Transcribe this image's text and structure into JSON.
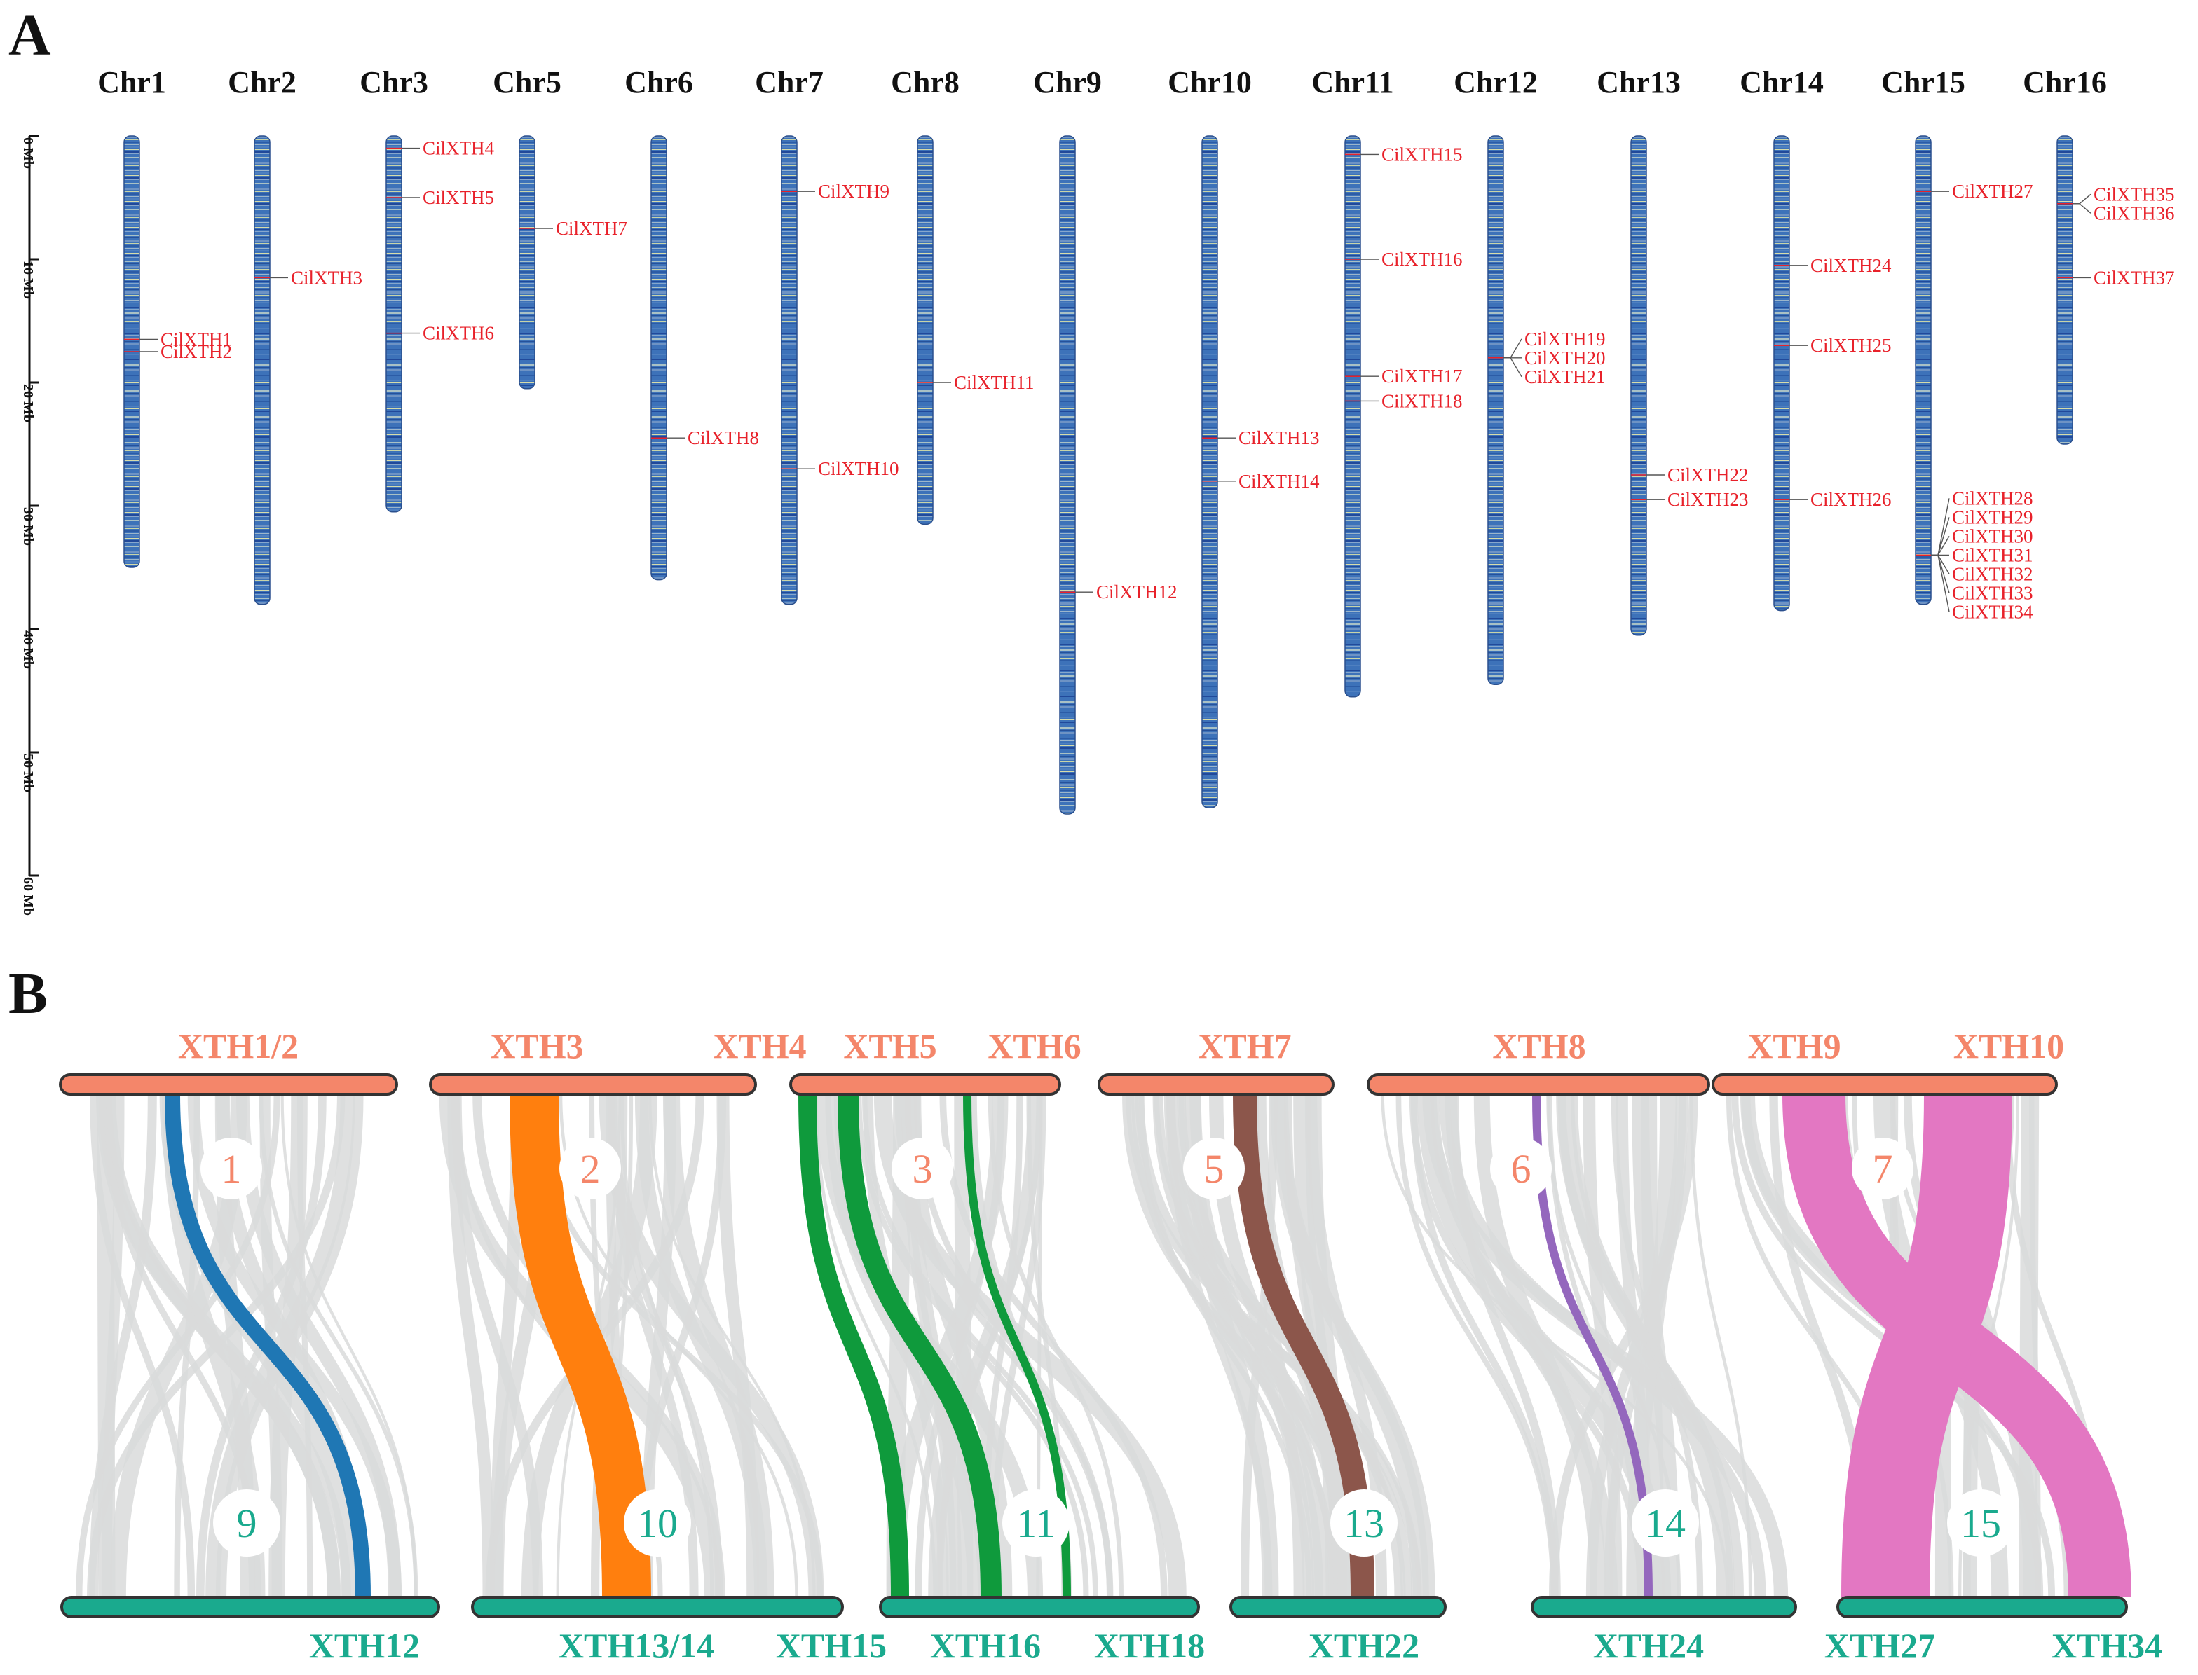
{
  "panel_a": {
    "letter": "A",
    "chromosomes": [
      {
        "name": "Chr1",
        "length": 35
      },
      {
        "name": "Chr2",
        "length": 38
      },
      {
        "name": "Chr3",
        "length": 30.5
      },
      {
        "name": "Chr5",
        "length": 20.5
      },
      {
        "name": "Chr6",
        "length": 36
      },
      {
        "name": "Chr7",
        "length": 38
      },
      {
        "name": "Chr8",
        "length": 31.5
      },
      {
        "name": "Chr9",
        "length": 55
      },
      {
        "name": "Chr10",
        "length": 54.5
      },
      {
        "name": "Chr11",
        "length": 45.5
      },
      {
        "name": "Chr12",
        "length": 44.5
      },
      {
        "name": "Chr13",
        "length": 40.5
      },
      {
        "name": "Chr14",
        "length": 38.5
      },
      {
        "name": "Chr15",
        "length": 38
      },
      {
        "name": "Chr16",
        "length": 25
      }
    ],
    "genes": [
      {
        "chr": "Chr1",
        "name": "CilXTH1",
        "pos": 16.5
      },
      {
        "chr": "Chr1",
        "name": "CilXTH2",
        "pos": 17.5
      },
      {
        "chr": "Chr2",
        "name": "CilXTH3",
        "pos": 11.5
      },
      {
        "chr": "Chr3",
        "name": "CilXTH4",
        "pos": 1
      },
      {
        "chr": "Chr3",
        "name": "CilXTH5",
        "pos": 5
      },
      {
        "chr": "Chr3",
        "name": "CilXTH6",
        "pos": 16
      },
      {
        "chr": "Chr5",
        "name": "CilXTH7",
        "pos": 7.5
      },
      {
        "chr": "Chr6",
        "name": "CilXTH8",
        "pos": 24.5
      },
      {
        "chr": "Chr7",
        "name": "CilXTH9",
        "pos": 4.5
      },
      {
        "chr": "Chr7",
        "name": "CilXTH10",
        "pos": 27
      },
      {
        "chr": "Chr8",
        "name": "CilXTH11",
        "pos": 20
      },
      {
        "chr": "Chr9",
        "name": "CilXTH12",
        "pos": 37
      },
      {
        "chr": "Chr10",
        "name": "CilXTH13",
        "pos": 24.5
      },
      {
        "chr": "Chr10",
        "name": "CilXTH14",
        "pos": 28
      },
      {
        "chr": "Chr11",
        "name": "CilXTH15",
        "pos": 1.5
      },
      {
        "chr": "Chr11",
        "name": "CilXTH16",
        "pos": 10
      },
      {
        "chr": "Chr11",
        "name": "CilXTH17",
        "pos": 19.5
      },
      {
        "chr": "Chr11",
        "name": "CilXTH18",
        "pos": 21.5
      },
      {
        "chr": "Chr12",
        "name": "CilXTH19",
        "pos": 18
      },
      {
        "chr": "Chr12",
        "name": "CilXTH20",
        "pos": 18
      },
      {
        "chr": "Chr12",
        "name": "CilXTH21",
        "pos": 18
      },
      {
        "chr": "Chr13",
        "name": "CilXTH22",
        "pos": 27.5
      },
      {
        "chr": "Chr13",
        "name": "CilXTH23",
        "pos": 29.5
      },
      {
        "chr": "Chr14",
        "name": "CilXTH24",
        "pos": 10.5
      },
      {
        "chr": "Chr14",
        "name": "CilXTH25",
        "pos": 17
      },
      {
        "chr": "Chr14",
        "name": "CilXTH26",
        "pos": 29.5
      },
      {
        "chr": "Chr15",
        "name": "CilXTH27",
        "pos": 4.5
      },
      {
        "chr": "Chr15",
        "name": "CilXTH28",
        "pos": 34
      },
      {
        "chr": "Chr15",
        "name": "CilXTH29",
        "pos": 34
      },
      {
        "chr": "Chr15",
        "name": "CilXTH30",
        "pos": 34
      },
      {
        "chr": "Chr15",
        "name": "CilXTH31",
        "pos": 34
      },
      {
        "chr": "Chr15",
        "name": "CilXTH32",
        "pos": 34
      },
      {
        "chr": "Chr15",
        "name": "CilXTH33",
        "pos": 34
      },
      {
        "chr": "Chr15",
        "name": "CilXTH34",
        "pos": 34
      },
      {
        "chr": "Chr16",
        "name": "CilXTH35",
        "pos": 5.5
      },
      {
        "chr": "Chr16",
        "name": "CilXTH36",
        "pos": 5.5
      },
      {
        "chr": "Chr16",
        "name": "CilXTH37",
        "pos": 11.5
      }
    ],
    "axis": {
      "max": 60,
      "ticks": [
        {
          "value": 0,
          "label": "0 Mb"
        },
        {
          "value": 10,
          "label": "10 Mb"
        },
        {
          "value": 20,
          "label": "20 Mb"
        },
        {
          "value": 30,
          "label": "30 Mb"
        },
        {
          "value": 40,
          "label": "40 Mb"
        },
        {
          "value": 50,
          "label": "50 Mb"
        },
        {
          "value": 60,
          "label": "60 Mb"
        }
      ]
    },
    "colors": {
      "chromosome": "#3b6fb6",
      "chromosome_light": "#c9d6a8",
      "gene_label": "#e8212a"
    }
  },
  "panel_b": {
    "letter": "B",
    "colors": {
      "top_bar": "#f4866a",
      "bottom_bar": "#1aaa8e",
      "background_links": "#d9dadb"
    },
    "blocks": [
      {
        "top_genes": [
          "XTH1/2"
        ],
        "bottom_genes": [
          "XTH12"
        ],
        "top_number": "1",
        "bottom_number": "9",
        "links": [
          {
            "color": "#1f77b4",
            "weight": 1
          }
        ]
      },
      {
        "top_genes": [
          "XTH3",
          "XTH4"
        ],
        "bottom_genes": [
          "XTH13/14"
        ],
        "top_number": "2",
        "bottom_number": "10",
        "links": [
          {
            "color": "#ff7f0e",
            "weight": 3
          }
        ]
      },
      {
        "top_genes": [
          "XTH5",
          "XTH6"
        ],
        "bottom_genes": [
          "XTH15",
          "XTH16",
          "XTH18"
        ],
        "top_number": "3",
        "bottom_number": "11",
        "links": [
          {
            "color": "#0f9a3c",
            "weight": 1.5
          },
          {
            "color": "#0f9a3c",
            "weight": 2
          },
          {
            "color": "#0f9a3c",
            "weight": 0.6
          }
        ]
      },
      {
        "top_genes": [
          "XTH7"
        ],
        "bottom_genes": [
          "XTH22"
        ],
        "top_number": "5",
        "bottom_number": "13",
        "links": [
          {
            "color": "#8c564b",
            "weight": 2
          }
        ]
      },
      {
        "top_genes": [
          "XTH8"
        ],
        "bottom_genes": [
          "XTH24"
        ],
        "top_number": "6",
        "bottom_number": "14",
        "links": [
          {
            "color": "#9467bd",
            "weight": 0.5
          }
        ]
      },
      {
        "top_genes": [
          "XTH9",
          "XTH10"
        ],
        "bottom_genes": [
          "XTH27",
          "XTH34"
        ],
        "top_number": "7",
        "bottom_number": "15",
        "links": [
          {
            "color": "#e377c2",
            "weight": 4
          },
          {
            "color": "#e377c2",
            "weight": 6
          }
        ]
      }
    ]
  }
}
